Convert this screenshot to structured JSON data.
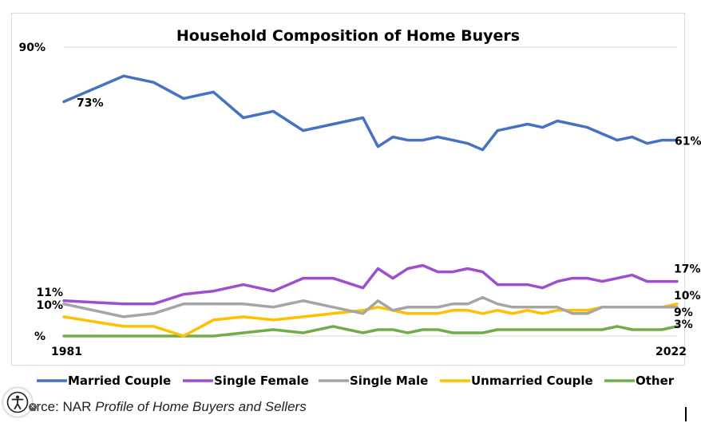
{
  "chart_data": {
    "type": "line",
    "title": "Household Composition of Home Buyers",
    "x": [
      1981,
      1985,
      1987,
      1989,
      1991,
      1993,
      1995,
      1997,
      1999,
      2001,
      2002,
      2003,
      2004,
      2005,
      2006,
      2007,
      2008,
      2009,
      2010,
      2011,
      2012,
      2013,
      2014,
      2015,
      2016,
      2017,
      2018,
      2019,
      2020,
      2021,
      2022
    ],
    "xlim": [
      1981,
      2022
    ],
    "ylim": [
      0,
      90
    ],
    "ytick_labels": [
      {
        "value": 90,
        "label": "90%"
      },
      {
        "value": 0,
        "label": "%"
      }
    ],
    "xtick_labels": [
      {
        "value": 1981,
        "label": "1981"
      },
      {
        "value": 2022,
        "label": "2022"
      }
    ],
    "series": [
      {
        "name": "Married Couple",
        "color": "#4472C4",
        "values": [
          73,
          81,
          79,
          74,
          76,
          68,
          70,
          64,
          66,
          68,
          59,
          62,
          61,
          61,
          62,
          61,
          60,
          58,
          64,
          65,
          66,
          65,
          67,
          66,
          65,
          63,
          61,
          62,
          60,
          61,
          61
        ]
      },
      {
        "name": "Single Female",
        "color": "#9E4FD0",
        "values": [
          11,
          10,
          10,
          13,
          14,
          16,
          14,
          18,
          18,
          15,
          21,
          18,
          21,
          22,
          20,
          20,
          21,
          20,
          16,
          16,
          16,
          15,
          17,
          18,
          18,
          17,
          18,
          19,
          17,
          17,
          17
        ]
      },
      {
        "name": "Single Male",
        "color": "#A5A5A5",
        "values": [
          10,
          6,
          7,
          10,
          10,
          10,
          9,
          11,
          9,
          7,
          11,
          8,
          9,
          9,
          9,
          10,
          10,
          12,
          10,
          9,
          9,
          9,
          9,
          7,
          7,
          9,
          9,
          9,
          9,
          9,
          9
        ]
      },
      {
        "name": "Unmarried Couple",
        "color": "#FFC000",
        "values": [
          6,
          3,
          3,
          0,
          5,
          6,
          5,
          6,
          7,
          8,
          9,
          8,
          7,
          7,
          7,
          8,
          8,
          7,
          8,
          7,
          8,
          7,
          8,
          8,
          8,
          9,
          9,
          9,
          9,
          9,
          10
        ]
      },
      {
        "name": "Other",
        "color": "#70AD47",
        "values": [
          0,
          0,
          0,
          0,
          0,
          1,
          2,
          1,
          3,
          1,
          2,
          2,
          1,
          2,
          2,
          1,
          1,
          1,
          2,
          2,
          2,
          2,
          2,
          2,
          2,
          2,
          3,
          2,
          2,
          2,
          3
        ]
      }
    ],
    "data_labels": [
      {
        "series": "Married Couple",
        "x": 1981,
        "text": "73%"
      },
      {
        "series": "Married Couple",
        "x": 2022,
        "text": "61%"
      },
      {
        "series": "Single Female",
        "x": 1981,
        "text": "11%"
      },
      {
        "series": "Single Female",
        "x": 2022,
        "text": "17%"
      },
      {
        "series": "Single Male",
        "x": 1981,
        "text": "10%"
      },
      {
        "series": "Unmarried Couple",
        "x": 2022,
        "text": "10%"
      },
      {
        "series": "Single Male",
        "x": 2022,
        "text": "9%"
      },
      {
        "series": "Other",
        "x": 2022,
        "text": "3%"
      }
    ],
    "legend_position": "bottom",
    "grid": "horizontal line at top only"
  },
  "source": {
    "prefix": "urce: NAR ",
    "italic": "Profile of Home Buyers and Sellers"
  },
  "icons": {
    "accessibility": "accessibility-icon",
    "close": "close-icon"
  }
}
